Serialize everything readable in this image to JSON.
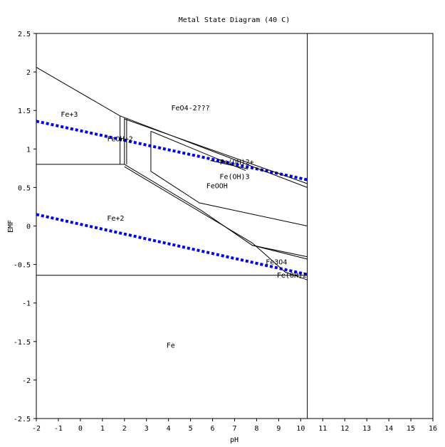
{
  "chart_data": {
    "type": "line",
    "title": "Metal State Diagram (40 C)",
    "xlabel": "pH",
    "ylabel": "EMF",
    "xlim": [
      -2,
      16
    ],
    "ylim": [
      -2.5,
      2.5
    ],
    "x_ticks": [
      -2,
      -1,
      0,
      1,
      2,
      3,
      4,
      5,
      6,
      7,
      8,
      9,
      10,
      11,
      12,
      13,
      14,
      15,
      16
    ],
    "y_ticks": [
      2.5,
      2,
      1.5,
      1,
      0.5,
      0,
      -0.5,
      -1,
      -1.5,
      -2,
      -2.5
    ],
    "grid": false,
    "legend": "none",
    "series": [
      {
        "style": "water-upper",
        "color": "#0000ff",
        "points": [
          [
            -2,
            1.36
          ],
          [
            10.3,
            0.6
          ]
        ]
      },
      {
        "style": "water-lower",
        "color": "#0000ff",
        "points": [
          [
            -2,
            0.15
          ],
          [
            10.3,
            -0.63
          ]
        ]
      },
      {
        "style": "boundary",
        "color": "#000000",
        "points": [
          [
            -2,
            2.06
          ],
          [
            1.8,
            1.43
          ],
          [
            10.3,
            0.5
          ]
        ]
      },
      {
        "style": "boundary",
        "color": "#000000",
        "points": [
          [
            -2,
            0.8
          ],
          [
            2.0,
            0.8
          ]
        ]
      },
      {
        "style": "boundary",
        "color": "#000000",
        "points": [
          [
            1.8,
            0.8
          ],
          [
            1.8,
            1.43
          ]
        ]
      },
      {
        "style": "boundary",
        "color": "#000000",
        "points": [
          [
            2.0,
            0.8
          ],
          [
            2.0,
            1.4
          ]
        ]
      },
      {
        "style": "boundary",
        "color": "#000000",
        "points": [
          [
            2.1,
            0.8
          ],
          [
            2.1,
            1.39
          ]
        ]
      },
      {
        "style": "boundary",
        "color": "#000000",
        "points": [
          [
            2.0,
            1.39
          ],
          [
            10.3,
            0.55
          ]
        ]
      },
      {
        "style": "boundary",
        "color": "#000000",
        "points": [
          [
            2.0,
            0.8
          ],
          [
            5.5,
            0.2
          ],
          [
            7.8,
            -0.25
          ],
          [
            10.3,
            -0.43
          ]
        ]
      },
      {
        "style": "boundary",
        "color": "#000000",
        "points": [
          [
            2.0,
            0.77
          ],
          [
            7.8,
            -0.22
          ],
          [
            9.3,
            -0.6
          ],
          [
            10.3,
            -0.7
          ]
        ]
      },
      {
        "style": "boundary",
        "color": "#000000",
        "points": [
          [
            7.8,
            -0.25
          ],
          [
            10.3,
            -0.4
          ]
        ]
      },
      {
        "style": "boundary",
        "color": "#000000",
        "points": [
          [
            3.2,
            1.23
          ],
          [
            3.2,
            0.71
          ],
          [
            5.4,
            0.3
          ],
          [
            10.3,
            0.0
          ]
        ]
      },
      {
        "style": "boundary",
        "color": "#000000",
        "points": [
          [
            3.2,
            1.23
          ],
          [
            7.5,
            0.72
          ]
        ]
      },
      {
        "style": "boundary",
        "color": "#000000",
        "points": [
          [
            5.9,
            0.85
          ],
          [
            7.6,
            0.74
          ]
        ]
      },
      {
        "style": "boundary",
        "color": "#000000",
        "points": [
          [
            -2,
            -0.64
          ],
          [
            10.3,
            -0.64
          ]
        ]
      },
      {
        "style": "boundary",
        "color": "#000000",
        "points": [
          [
            10.3,
            2.5
          ],
          [
            10.3,
            -2.5
          ]
        ]
      }
    ],
    "annotations": [
      {
        "text": "Fe+3",
        "x": -0.5,
        "y": 1.42
      },
      {
        "text": "FeO4-2???",
        "x": 5.0,
        "y": 1.5
      },
      {
        "text": "FeOH+2",
        "x": 1.8,
        "y": 1.1
      },
      {
        "text": "Fe(OH)2+",
        "x": 7.1,
        "y": 0.8
      },
      {
        "text": "Fe(OH)3",
        "x": 7.0,
        "y": 0.61
      },
      {
        "text": "FeOOH",
        "x": 6.2,
        "y": 0.49
      },
      {
        "text": "Fe+2",
        "x": 1.6,
        "y": 0.07
      },
      {
        "text": "Fe3O4",
        "x": 8.9,
        "y": -0.5
      },
      {
        "text": "Fe(OH)2",
        "x": 9.6,
        "y": -0.67
      },
      {
        "text": "Fe",
        "x": 4.1,
        "y": -1.58
      }
    ]
  }
}
